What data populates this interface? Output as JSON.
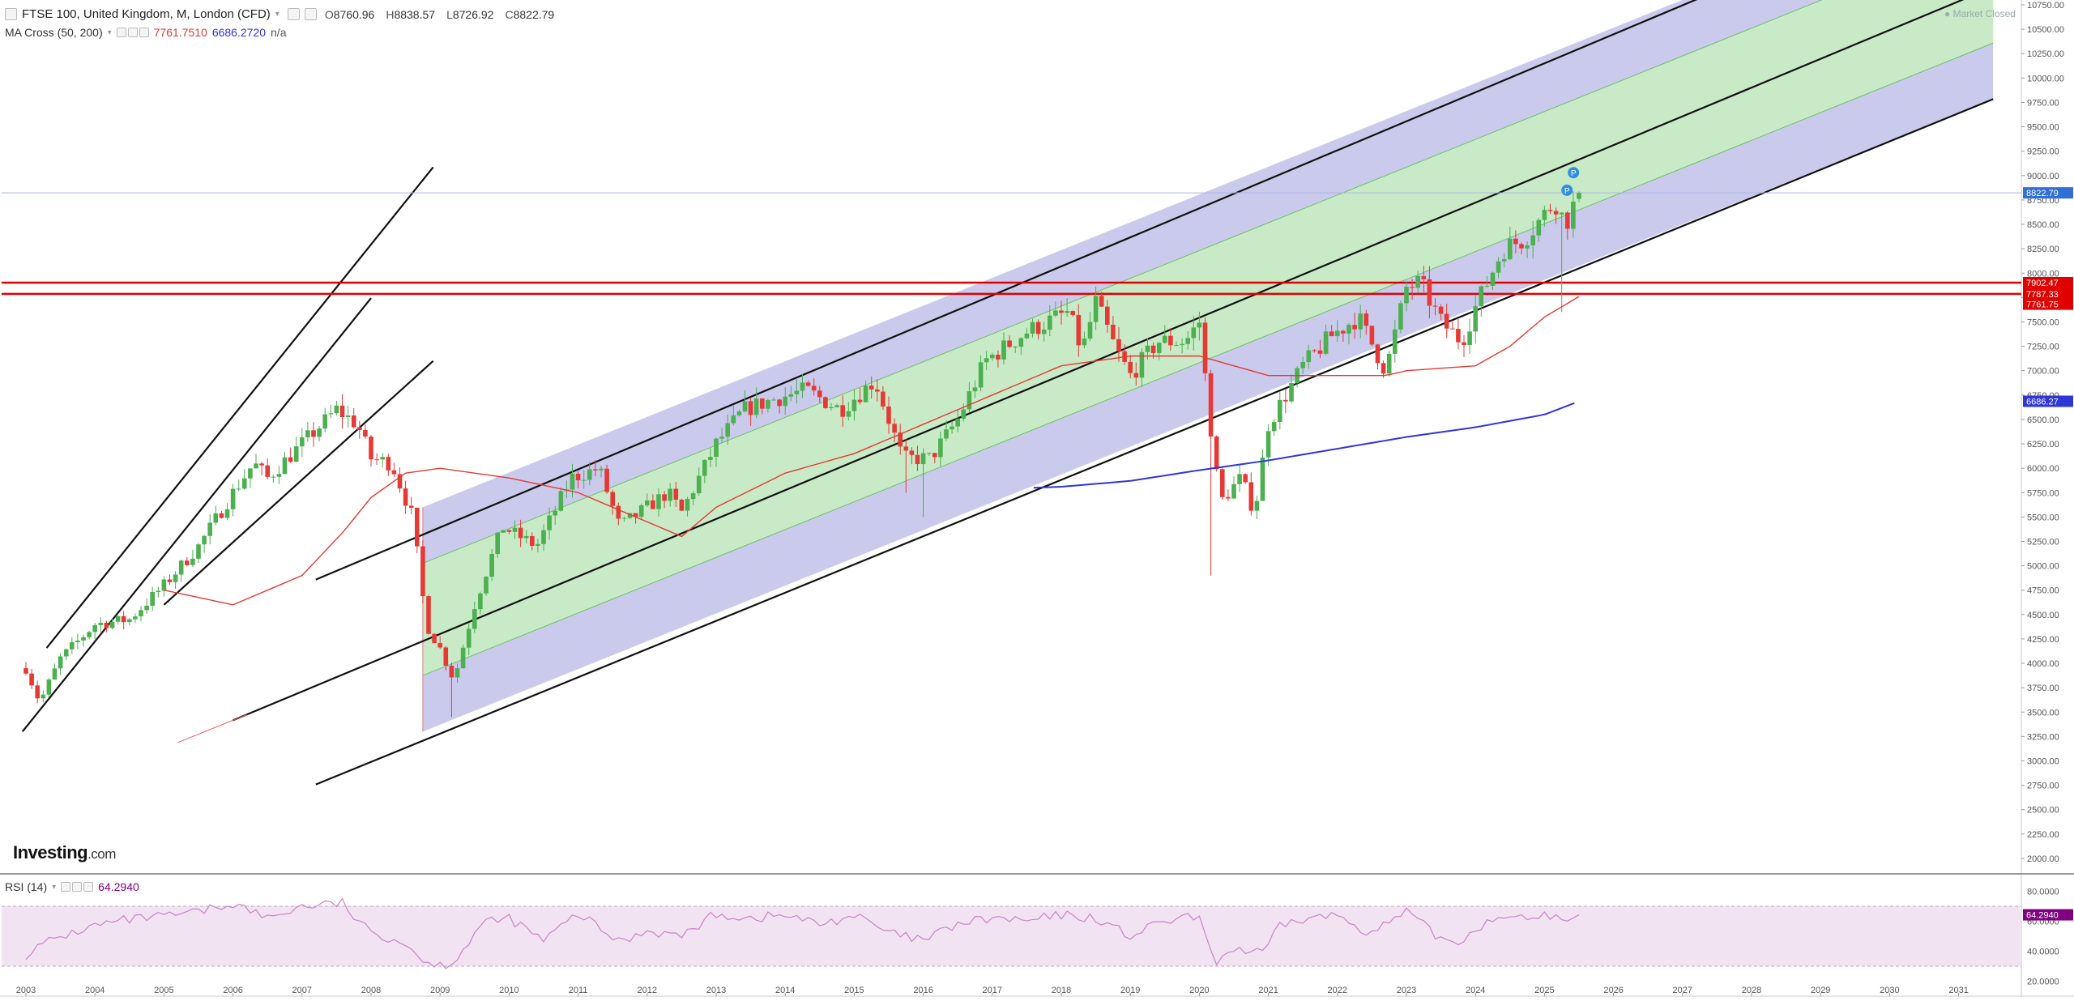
{
  "header": {
    "symbol_title": "FTSE 100, United Kingdom, M, London (CFD)",
    "open_label": "O",
    "open": "8760.96",
    "high_label": "H",
    "high": "8838.57",
    "low_label": "L",
    "low": "8726.92",
    "close_label": "C",
    "close": "8822.79",
    "indicator_name": "MA Cross (50, 200)",
    "ma50_value": "7761.7510",
    "ma200_value": "6686.2720",
    "ma_extra": "n/a",
    "market_status": "Market Closed"
  },
  "rsi_panel": {
    "name": "RSI (14)",
    "value": "64.2940",
    "ticks": [
      "80.0000",
      "60.0000",
      "40.0000",
      "20.0000"
    ],
    "tag": "64.2940"
  },
  "logo": {
    "name": "Investing",
    "suffix": ".com"
  },
  "price_tags": {
    "last": "8822.79",
    "res_high": "7902.47",
    "res_low": "7787.33",
    "ma50": "7761.75",
    "ma200": "6686.27"
  },
  "colors": {
    "bull": "#4caf50",
    "bear": "#e53935",
    "ma50": "#e53935",
    "ma200": "#2e36d8",
    "channel_outer": "#b8b8e6",
    "channel_inner": "#c7ebc4",
    "rsi": "#c784c7",
    "rsi_band": "#f2e3f2",
    "resistance": "#e00000",
    "last_tag": "#2f6fd6",
    "rsi_tag": "#800080"
  },
  "chart_data": {
    "type": "candlestick",
    "interval": "monthly",
    "x_axis": {
      "labels": [
        "2003",
        "2004",
        "2005",
        "2006",
        "2007",
        "2008",
        "2009",
        "2010",
        "2011",
        "2012",
        "2013",
        "2014",
        "2015",
        "2016",
        "2017",
        "2018",
        "2019",
        "2020",
        "2021",
        "2022",
        "2023",
        "2024",
        "2025",
        "2026",
        "2027",
        "2028",
        "2029",
        "2030",
        "2031"
      ]
    },
    "y_axis": {
      "range": [
        1850,
        10800
      ],
      "ticks": [
        "10750.00",
        "10500.00",
        "10250.00",
        "10000.00",
        "9750.00",
        "9500.00",
        "9250.00",
        "9000.00",
        "8750.00",
        "8500.00",
        "8250.00",
        "8000.00",
        "7750.00",
        "7500.00",
        "7250.00",
        "7000.00",
        "6750.00",
        "6500.00",
        "6250.00",
        "6000.00",
        "5750.00",
        "5500.00",
        "5250.00",
        "5000.00",
        "4750.00",
        "4500.00",
        "4250.00",
        "4000.00",
        "3750.00",
        "3500.00",
        "3250.00",
        "3000.00",
        "2750.00",
        "2500.00",
        "2250.00",
        "2000.00"
      ]
    },
    "close_anchors": [
      [
        2003.0,
        3950
      ],
      [
        2003.2,
        3600
      ],
      [
        2003.5,
        4050
      ],
      [
        2004.0,
        4400
      ],
      [
        2004.5,
        4450
      ],
      [
        2005.0,
        4800
      ],
      [
        2005.5,
        5200
      ],
      [
        2006.0,
        5750
      ],
      [
        2006.3,
        6050
      ],
      [
        2006.5,
        5900
      ],
      [
        2007.0,
        6250
      ],
      [
        2007.5,
        6600
      ],
      [
        2007.8,
        6450
      ],
      [
        2008.0,
        6100
      ],
      [
        2008.3,
        6050
      ],
      [
        2008.6,
        5500
      ],
      [
        2008.8,
        4400
      ],
      [
        2009.0,
        4150
      ],
      [
        2009.2,
        3830
      ],
      [
        2009.5,
        4600
      ],
      [
        2009.9,
        5400
      ],
      [
        2010.4,
        5200
      ],
      [
        2010.9,
        5900
      ],
      [
        2011.3,
        6000
      ],
      [
        2011.6,
        5400
      ],
      [
        2011.9,
        5550
      ],
      [
        2012.3,
        5750
      ],
      [
        2012.5,
        5550
      ],
      [
        2013.0,
        6250
      ],
      [
        2013.4,
        6600
      ],
      [
        2013.8,
        6700
      ],
      [
        2014.3,
        6800
      ],
      [
        2014.8,
        6600
      ],
      [
        2015.3,
        6900
      ],
      [
        2015.7,
        6100
      ],
      [
        2016.1,
        6100
      ],
      [
        2016.5,
        6500
      ],
      [
        2016.9,
        7100
      ],
      [
        2017.5,
        7400
      ],
      [
        2018.1,
        7600
      ],
      [
        2018.3,
        7200
      ],
      [
        2018.5,
        7700
      ],
      [
        2018.8,
        7200
      ],
      [
        2019.0,
        6950
      ],
      [
        2019.4,
        7300
      ],
      [
        2019.8,
        7300
      ],
      [
        2020.0,
        7500
      ],
      [
        2020.15,
        6500
      ],
      [
        2020.3,
        5650
      ],
      [
        2020.6,
        5900
      ],
      [
        2020.8,
        5550
      ],
      [
        2021.0,
        6450
      ],
      [
        2021.5,
        7050
      ],
      [
        2021.9,
        7350
      ],
      [
        2022.3,
        7550
      ],
      [
        2022.7,
        7000
      ],
      [
        2023.0,
        7850
      ],
      [
        2023.2,
        7900
      ],
      [
        2023.5,
        7500
      ],
      [
        2023.8,
        7300
      ],
      [
        2024.0,
        7650
      ],
      [
        2024.4,
        8250
      ],
      [
        2024.7,
        8350
      ],
      [
        2025.0,
        8600
      ],
      [
        2025.15,
        8750
      ],
      [
        2025.3,
        8500
      ],
      [
        2025.5,
        8822
      ]
    ],
    "last_candle": {
      "open": 8760.96,
      "high": 8838.57,
      "low": 8726.92,
      "close": 8822.79
    },
    "moving_averages": [
      {
        "name": "MA 50",
        "value": 7761.751,
        "points": [
          [
            2005.0,
            4750
          ],
          [
            2006.0,
            4600
          ],
          [
            2007.0,
            4900
          ],
          [
            2007.6,
            5350
          ],
          [
            2008.0,
            5700
          ],
          [
            2008.5,
            5950
          ],
          [
            2009.0,
            6000
          ],
          [
            2010.0,
            5900
          ],
          [
            2011.0,
            5750
          ],
          [
            2012.0,
            5450
          ],
          [
            2012.5,
            5300
          ],
          [
            2013.0,
            5600
          ],
          [
            2014.0,
            5950
          ],
          [
            2015.0,
            6150
          ],
          [
            2016.0,
            6450
          ],
          [
            2017.0,
            6750
          ],
          [
            2018.0,
            7050
          ],
          [
            2019.0,
            7150
          ],
          [
            2020.0,
            7150
          ],
          [
            2020.5,
            7050
          ],
          [
            2021.0,
            6950
          ],
          [
            2022.0,
            6950
          ],
          [
            2022.7,
            6950
          ],
          [
            2023.0,
            7000
          ],
          [
            2024.0,
            7050
          ],
          [
            2024.5,
            7250
          ],
          [
            2025.0,
            7550
          ],
          [
            2025.5,
            7760
          ]
        ]
      },
      {
        "name": "MA 200",
        "value": 6686.272,
        "points": [
          [
            2017.6,
            5800
          ],
          [
            2018.0,
            5810
          ],
          [
            2019.0,
            5870
          ],
          [
            2020.0,
            5980
          ],
          [
            2021.0,
            6080
          ],
          [
            2022.0,
            6200
          ],
          [
            2023.0,
            6320
          ],
          [
            2024.0,
            6420
          ],
          [
            2025.0,
            6550
          ],
          [
            2025.5,
            6686
          ]
        ]
      }
    ],
    "channels": [
      {
        "kind": "regression_band",
        "start": 2008.75,
        "end": 2031.5,
        "center_start": 4450,
        "slope_per_year": 285,
        "outer_width": 1150,
        "inner_width": 575
      },
      {
        "kind": "trend_channel",
        "start": 2002.95,
        "end": 2008.0,
        "lower_start": 3300,
        "upper_start": 3850,
        "slope_per_year": 880
      }
    ],
    "trend_lines": [
      {
        "from": [
          2005.0,
          4600
        ],
        "to": [
          2008.9,
          7100
        ]
      }
    ],
    "resistance_levels": [
      7902.47,
      7787.33
    ],
    "rsi": {
      "period": 14,
      "range": [
        10,
        90
      ],
      "band": [
        30,
        70
      ],
      "last": 64.294,
      "anchors": [
        [
          2003.0,
          38
        ],
        [
          2003.4,
          48
        ],
        [
          2004.0,
          57
        ],
        [
          2004.5,
          61
        ],
        [
          2005.0,
          63
        ],
        [
          2005.5,
          66
        ],
        [
          2006.0,
          72
        ],
        [
          2006.5,
          62
        ],
        [
          2007.0,
          70
        ],
        [
          2007.6,
          72
        ],
        [
          2007.8,
          60
        ],
        [
          2008.0,
          52
        ],
        [
          2008.4,
          48
        ],
        [
          2008.9,
          30
        ],
        [
          2009.2,
          33
        ],
        [
          2009.6,
          58
        ],
        [
          2010.0,
          62
        ],
        [
          2010.5,
          47
        ],
        [
          2011.0,
          65
        ],
        [
          2011.6,
          46
        ],
        [
          2012.0,
          54
        ],
        [
          2012.5,
          50
        ],
        [
          2013.0,
          65
        ],
        [
          2013.5,
          62
        ],
        [
          2014.0,
          64
        ],
        [
          2014.5,
          58
        ],
        [
          2015.0,
          64
        ],
        [
          2015.5,
          52
        ],
        [
          2016.0,
          47
        ],
        [
          2016.5,
          58
        ],
        [
          2017.0,
          62
        ],
        [
          2017.5,
          60
        ],
        [
          2018.0,
          64
        ],
        [
          2018.5,
          62
        ],
        [
          2019.0,
          50
        ],
        [
          2019.5,
          60
        ],
        [
          2020.0,
          63
        ],
        [
          2020.2,
          32
        ],
        [
          2020.5,
          42
        ],
        [
          2020.9,
          38
        ],
        [
          2021.2,
          58
        ],
        [
          2021.6,
          62
        ],
        [
          2022.0,
          64
        ],
        [
          2022.5,
          52
        ],
        [
          2023.0,
          66
        ],
        [
          2023.5,
          48
        ],
        [
          2023.8,
          46
        ],
        [
          2024.0,
          56
        ],
        [
          2024.5,
          66
        ],
        [
          2024.8,
          58
        ],
        [
          2025.0,
          66
        ],
        [
          2025.3,
          59
        ],
        [
          2025.5,
          64
        ]
      ]
    }
  }
}
